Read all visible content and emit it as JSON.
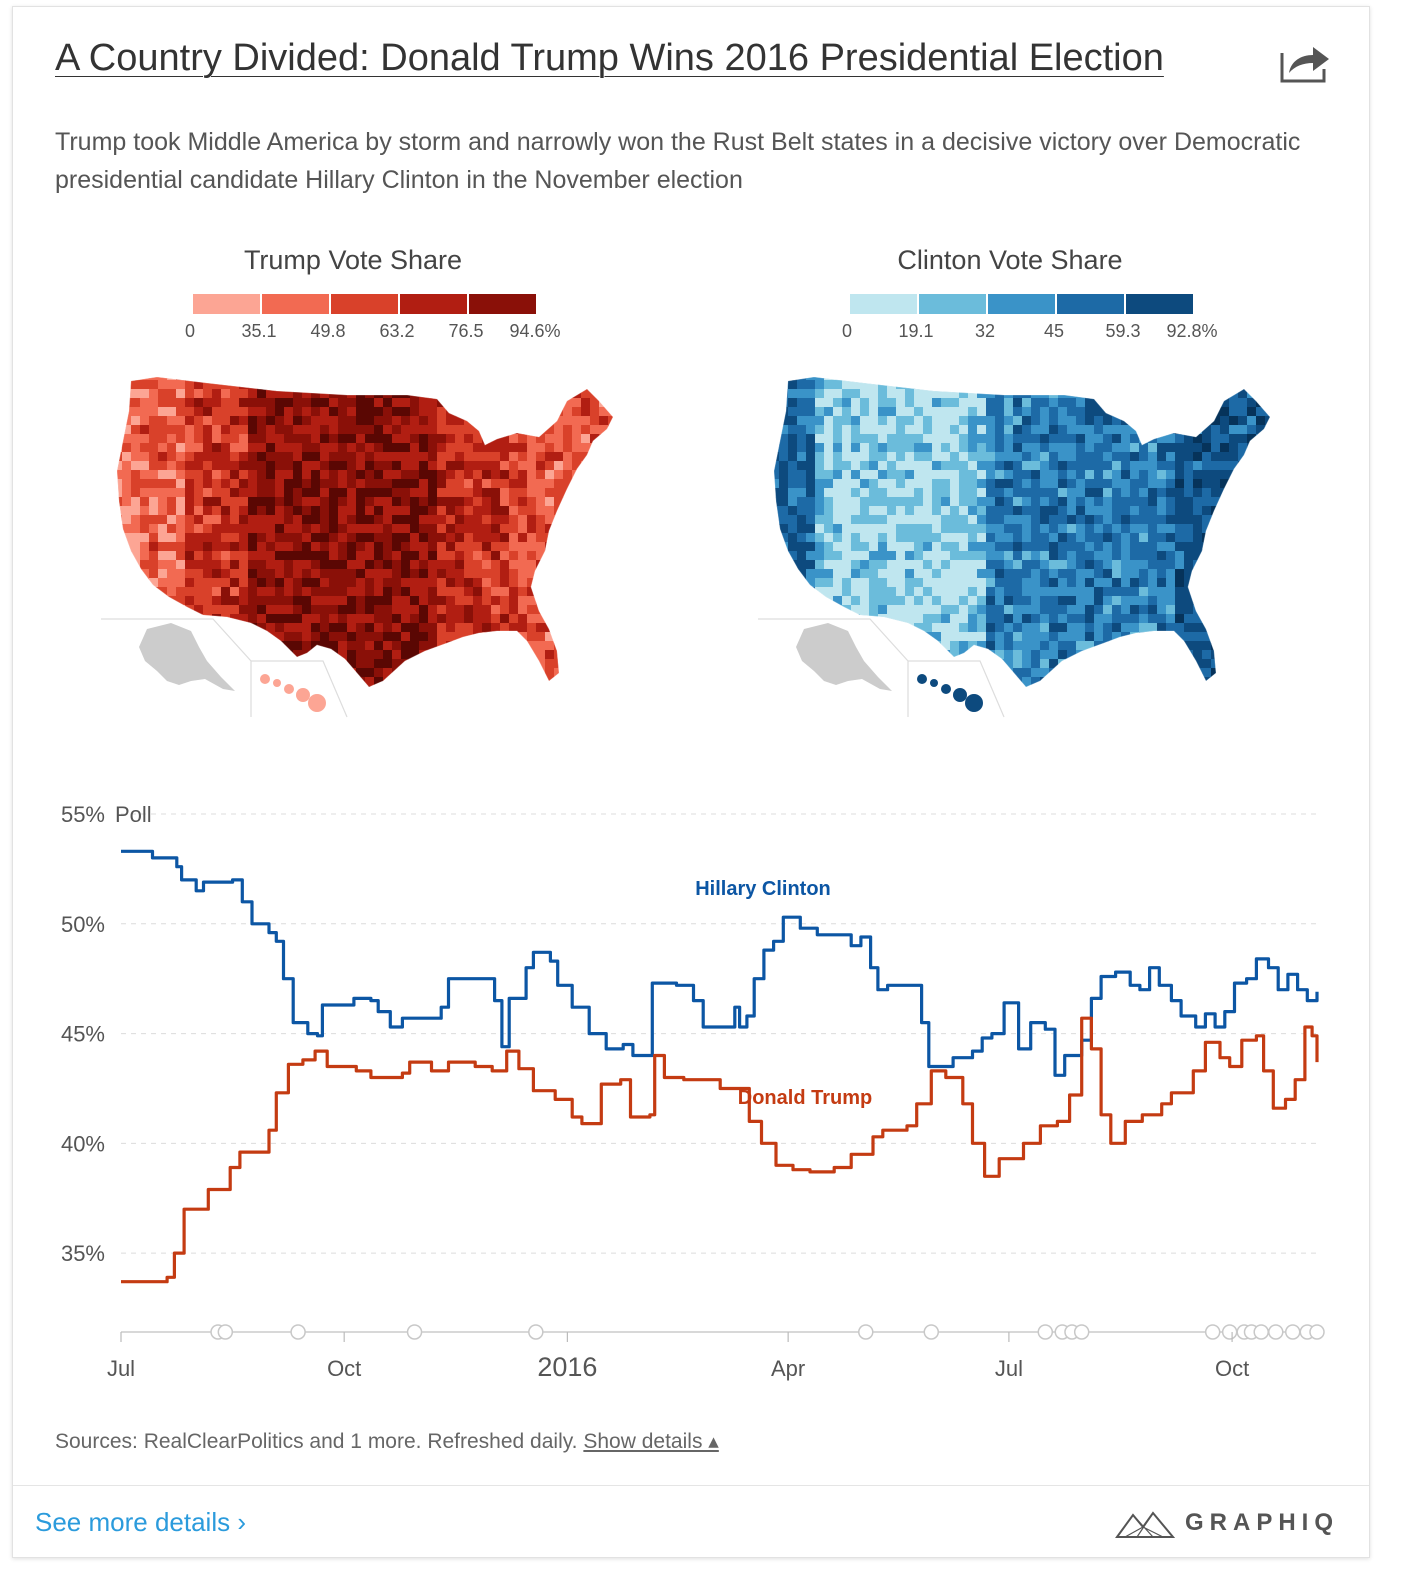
{
  "header": {
    "title": "A Country Divided: Donald Trump Wins 2016 Presidential Election",
    "subtitle": "Trump took Middle America by storm and narrowly won the Rust Belt states in a decisive victory over Democratic presidential candidate Hillary Clinton in the November election",
    "share_icon": "share-arrow-icon"
  },
  "maps": [
    {
      "title": "Trump Vote Share",
      "breaks": [
        "0",
        "35.1",
        "49.8",
        "63.2",
        "76.5",
        "94.6%"
      ],
      "colors": [
        "#fca594",
        "#f26a52",
        "#d9412a",
        "#b11e12",
        "#8a1008",
        "#5a0703"
      ],
      "inset_color": "#cccccc"
    },
    {
      "title": "Clinton Vote Share",
      "breaks": [
        "0",
        "19.1",
        "32",
        "45",
        "59.3",
        "92.8%"
      ],
      "colors": [
        "#bfe6ef",
        "#6bbcdb",
        "#3a93c8",
        "#1d6aa6",
        "#0d4a7e",
        "#06335a"
      ],
      "inset_color": "#cccccc"
    }
  ],
  "chart_data": {
    "type": "line",
    "ylabel": "Poll",
    "y_ticks": [
      "55%",
      "50%",
      "45%",
      "40%",
      "35%"
    ],
    "ylim": [
      32,
      55
    ],
    "x_ticks": [
      "Jul",
      "Oct",
      "2016",
      "Apr",
      "Jul",
      "Oct"
    ],
    "x_tick_dates": [
      "2015-07-01",
      "2015-10-01",
      "2016-01-01",
      "2016-04-01",
      "2016-07-01",
      "2016-10-01"
    ],
    "grid": true,
    "series": [
      {
        "name": "Hillary Clinton",
        "color": "#0c56a4",
        "points": [
          [
            "2015-07-01",
            53.3
          ],
          [
            "2015-07-13",
            53.3
          ],
          [
            "2015-07-14",
            53.0
          ],
          [
            "2015-07-24",
            52.6
          ],
          [
            "2015-07-26",
            52.0
          ],
          [
            "2015-08-01",
            51.5
          ],
          [
            "2015-08-04",
            51.9
          ],
          [
            "2015-08-16",
            52.0
          ],
          [
            "2015-08-20",
            51.0
          ],
          [
            "2015-08-24",
            50.0
          ],
          [
            "2015-08-31",
            49.6
          ],
          [
            "2015-09-03",
            49.2
          ],
          [
            "2015-09-06",
            47.5
          ],
          [
            "2015-09-10",
            45.5
          ],
          [
            "2015-09-16",
            45.0
          ],
          [
            "2015-09-20",
            44.9
          ],
          [
            "2015-09-22",
            46.3
          ],
          [
            "2015-09-30",
            46.3
          ],
          [
            "2015-10-05",
            46.6
          ],
          [
            "2015-10-12",
            46.5
          ],
          [
            "2015-10-15",
            46.0
          ],
          [
            "2015-10-20",
            45.3
          ],
          [
            "2015-10-25",
            45.7
          ],
          [
            "2015-11-05",
            45.7
          ],
          [
            "2015-11-10",
            46.2
          ],
          [
            "2015-11-13",
            47.5
          ],
          [
            "2015-11-26",
            47.5
          ],
          [
            "2015-12-02",
            46.5
          ],
          [
            "2015-12-05",
            44.4
          ],
          [
            "2015-12-08",
            46.6
          ],
          [
            "2015-12-15",
            48.0
          ],
          [
            "2015-12-18",
            48.7
          ],
          [
            "2015-12-25",
            48.3
          ],
          [
            "2015-12-28",
            47.2
          ],
          [
            "2016-01-03",
            46.2
          ],
          [
            "2016-01-10",
            45.0
          ],
          [
            "2016-01-17",
            44.3
          ],
          [
            "2016-01-24",
            44.5
          ],
          [
            "2016-01-28",
            44.0
          ],
          [
            "2016-02-03",
            44.0
          ],
          [
            "2016-02-05",
            47.3
          ],
          [
            "2016-02-15",
            47.2
          ],
          [
            "2016-02-22",
            46.5
          ],
          [
            "2016-02-26",
            45.3
          ],
          [
            "2016-03-08",
            45.3
          ],
          [
            "2016-03-10",
            46.2
          ],
          [
            "2016-03-12",
            45.3
          ],
          [
            "2016-03-15",
            45.8
          ],
          [
            "2016-03-18",
            47.5
          ],
          [
            "2016-03-22",
            48.8
          ],
          [
            "2016-03-26",
            49.2
          ],
          [
            "2016-03-30",
            50.3
          ],
          [
            "2016-04-06",
            49.8
          ],
          [
            "2016-04-13",
            49.5
          ],
          [
            "2016-04-20",
            49.5
          ],
          [
            "2016-04-27",
            49.0
          ],
          [
            "2016-05-01",
            49.4
          ],
          [
            "2016-05-05",
            48.0
          ],
          [
            "2016-05-08",
            47.0
          ],
          [
            "2016-05-12",
            47.2
          ],
          [
            "2016-05-22",
            47.2
          ],
          [
            "2016-05-26",
            45.5
          ],
          [
            "2016-05-29",
            43.5
          ],
          [
            "2016-06-08",
            43.9
          ],
          [
            "2016-06-16",
            44.2
          ],
          [
            "2016-06-20",
            44.8
          ],
          [
            "2016-06-24",
            45.0
          ],
          [
            "2016-06-29",
            46.4
          ],
          [
            "2016-07-05",
            44.3
          ],
          [
            "2016-07-10",
            45.5
          ],
          [
            "2016-07-16",
            45.2
          ],
          [
            "2016-07-20",
            43.1
          ],
          [
            "2016-07-24",
            44.0
          ],
          [
            "2016-07-31",
            44.7
          ],
          [
            "2016-08-04",
            46.6
          ],
          [
            "2016-08-08",
            47.6
          ],
          [
            "2016-08-14",
            47.8
          ],
          [
            "2016-08-20",
            47.2
          ],
          [
            "2016-08-24",
            47.0
          ],
          [
            "2016-08-28",
            48.0
          ],
          [
            "2016-09-01",
            47.2
          ],
          [
            "2016-09-06",
            46.5
          ],
          [
            "2016-09-10",
            45.8
          ],
          [
            "2016-09-16",
            45.3
          ],
          [
            "2016-09-20",
            45.9
          ],
          [
            "2016-09-24",
            45.3
          ],
          [
            "2016-09-28",
            46.0
          ],
          [
            "2016-10-02",
            47.3
          ],
          [
            "2016-10-07",
            47.5
          ],
          [
            "2016-10-11",
            48.4
          ],
          [
            "2016-10-16",
            48.0
          ],
          [
            "2016-10-20",
            47.0
          ],
          [
            "2016-10-24",
            47.7
          ],
          [
            "2016-10-28",
            47.0
          ],
          [
            "2016-11-01",
            46.5
          ],
          [
            "2016-11-05",
            46.9
          ]
        ]
      },
      {
        "name": "Donald Trump",
        "color": "#c43b12",
        "points": [
          [
            "2015-07-01",
            33.7
          ],
          [
            "2015-07-16",
            33.7
          ],
          [
            "2015-07-20",
            33.9
          ],
          [
            "2015-07-23",
            35.0
          ],
          [
            "2015-07-27",
            37.0
          ],
          [
            "2015-08-03",
            37.0
          ],
          [
            "2015-08-06",
            37.9
          ],
          [
            "2015-08-12",
            37.9
          ],
          [
            "2015-08-15",
            38.9
          ],
          [
            "2015-08-19",
            39.6
          ],
          [
            "2015-08-28",
            39.6
          ],
          [
            "2015-08-31",
            40.6
          ],
          [
            "2015-09-03",
            42.3
          ],
          [
            "2015-09-08",
            43.6
          ],
          [
            "2015-09-14",
            43.8
          ],
          [
            "2015-09-19",
            44.2
          ],
          [
            "2015-09-24",
            43.5
          ],
          [
            "2015-10-06",
            43.3
          ],
          [
            "2015-10-12",
            43.0
          ],
          [
            "2015-10-25",
            43.2
          ],
          [
            "2015-10-28",
            43.7
          ],
          [
            "2015-11-06",
            43.3
          ],
          [
            "2015-11-13",
            43.7
          ],
          [
            "2015-11-24",
            43.5
          ],
          [
            "2015-12-01",
            43.3
          ],
          [
            "2015-12-07",
            44.2
          ],
          [
            "2015-12-12",
            43.4
          ],
          [
            "2015-12-18",
            42.4
          ],
          [
            "2015-12-27",
            42.0
          ],
          [
            "2016-01-03",
            41.2
          ],
          [
            "2016-01-07",
            40.9
          ],
          [
            "2016-01-15",
            42.7
          ],
          [
            "2016-01-23",
            42.9
          ],
          [
            "2016-01-27",
            41.2
          ],
          [
            "2016-02-04",
            41.3
          ],
          [
            "2016-02-06",
            44.0
          ],
          [
            "2016-02-10",
            43.0
          ],
          [
            "2016-02-18",
            42.9
          ],
          [
            "2016-03-04",
            42.5
          ],
          [
            "2016-03-11",
            42.5
          ],
          [
            "2016-03-16",
            41.0
          ],
          [
            "2016-03-21",
            40.0
          ],
          [
            "2016-03-27",
            39.0
          ],
          [
            "2016-04-03",
            38.8
          ],
          [
            "2016-04-10",
            38.7
          ],
          [
            "2016-04-20",
            38.9
          ],
          [
            "2016-04-27",
            39.5
          ],
          [
            "2016-05-06",
            40.3
          ],
          [
            "2016-05-10",
            40.6
          ],
          [
            "2016-05-20",
            40.8
          ],
          [
            "2016-05-24",
            41.8
          ],
          [
            "2016-05-30",
            43.3
          ],
          [
            "2016-06-05",
            43.0
          ],
          [
            "2016-06-12",
            41.8
          ],
          [
            "2016-06-16",
            40.0
          ],
          [
            "2016-06-21",
            38.5
          ],
          [
            "2016-06-27",
            39.3
          ],
          [
            "2016-07-03",
            39.3
          ],
          [
            "2016-07-07",
            40.0
          ],
          [
            "2016-07-14",
            40.8
          ],
          [
            "2016-07-21",
            41.0
          ],
          [
            "2016-07-26",
            42.2
          ],
          [
            "2016-07-31",
            45.7
          ],
          [
            "2016-08-04",
            44.3
          ],
          [
            "2016-08-08",
            41.3
          ],
          [
            "2016-08-12",
            40.0
          ],
          [
            "2016-08-18",
            41.0
          ],
          [
            "2016-08-25",
            41.3
          ],
          [
            "2016-09-02",
            41.8
          ],
          [
            "2016-09-06",
            42.3
          ],
          [
            "2016-09-15",
            43.3
          ],
          [
            "2016-09-20",
            44.6
          ],
          [
            "2016-09-26",
            43.9
          ],
          [
            "2016-09-30",
            43.5
          ],
          [
            "2016-10-05",
            44.7
          ],
          [
            "2016-10-11",
            44.9
          ],
          [
            "2016-10-14",
            43.3
          ],
          [
            "2016-10-18",
            41.6
          ],
          [
            "2016-10-23",
            42.0
          ],
          [
            "2016-10-27",
            42.9
          ],
          [
            "2016-10-31",
            45.3
          ],
          [
            "2016-11-03",
            44.9
          ],
          [
            "2016-11-05",
            43.7
          ]
        ]
      }
    ],
    "event_markers": [
      "2015-08-10",
      "2015-08-13",
      "2015-09-12",
      "2015-10-30",
      "2015-12-19",
      "2016-05-03",
      "2016-05-30",
      "2016-07-16",
      "2016-07-23",
      "2016-07-27",
      "2016-07-31",
      "2016-09-23",
      "2016-09-30",
      "2016-10-06",
      "2016-10-09",
      "2016-10-13",
      "2016-10-19",
      "2016-10-26",
      "2016-11-01",
      "2016-11-05"
    ]
  },
  "footer": {
    "sources_text": "Sources: RealClearPolitics and 1 more. Refreshed daily.",
    "show_details": "Show details ▴",
    "see_more": "See more details ›",
    "brand": "GRAPHIQ"
  }
}
